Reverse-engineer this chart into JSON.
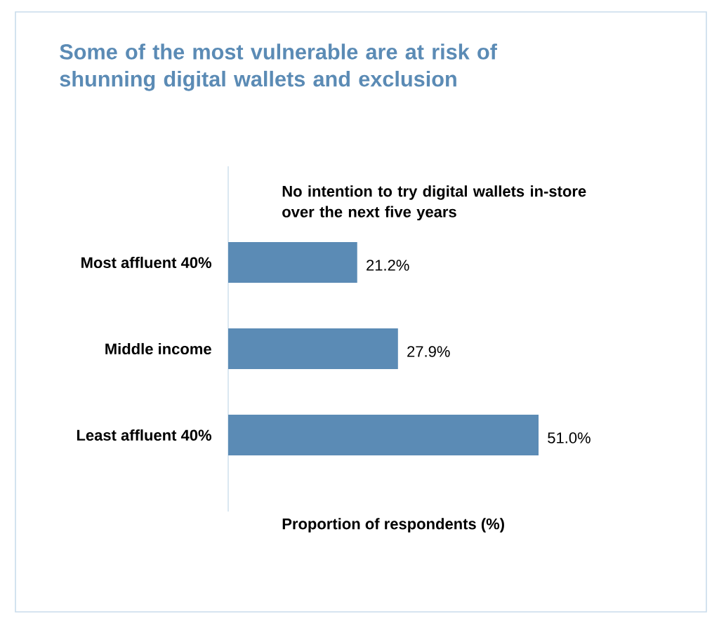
{
  "chart_data": {
    "type": "bar",
    "orientation": "horizontal",
    "title": "Some of the most vulnerable are at risk of shunning digital wallets and exclusion",
    "subtitle": "No intention to try digital wallets in-store over the next five years",
    "xlabel": "Proportion of respondents (%)",
    "categories": [
      "Most affluent 40%",
      "Middle income",
      "Least affluent 40%"
    ],
    "values": [
      21.2,
      27.9,
      51.0
    ],
    "value_labels": [
      "21.2%",
      "27.9%",
      "51.0%"
    ],
    "color": "#5b8bb5"
  }
}
